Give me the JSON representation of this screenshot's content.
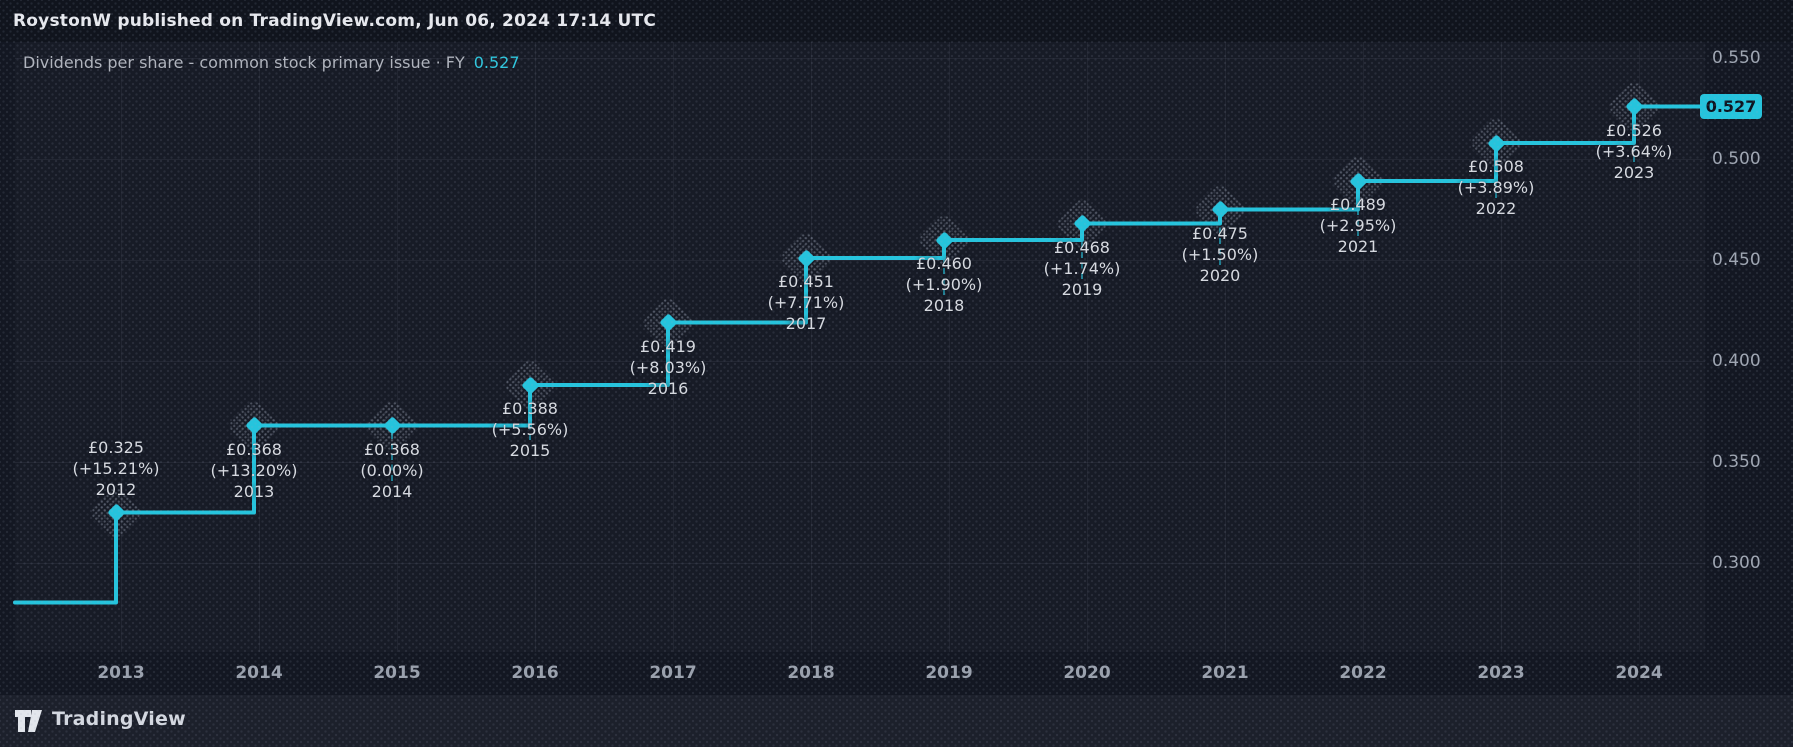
{
  "header": {
    "published_line": "RoystonW published on TradingView.com, Jun 06, 2024 17:14 UTC"
  },
  "legend": {
    "title": "Dividends per share - common stock primary issue · FY",
    "value": "0.527"
  },
  "footer": {
    "brand": "TradingView"
  },
  "colors": {
    "accent": "#25c4dd",
    "background": "#131722",
    "tag_text": "#0d131f",
    "axis_text": "#9fa6b2",
    "note_text": "#d7dae0"
  },
  "chart_data": {
    "type": "line",
    "line_style": "step",
    "title": "Dividends per share - common stock primary issue · FY",
    "currency": "GBP",
    "x": [
      "2012",
      "2013",
      "2014",
      "2015",
      "2016",
      "2017",
      "2018",
      "2019",
      "2020",
      "2021",
      "2022",
      "2023"
    ],
    "values": [
      0.325,
      0.368,
      0.368,
      0.388,
      0.419,
      0.451,
      0.46,
      0.468,
      0.475,
      0.489,
      0.508,
      0.526
    ],
    "point_annotations": [
      {
        "value_label": "£0.325",
        "change_label": "(+15.21%)",
        "year": "2012"
      },
      {
        "value_label": "£0.368",
        "change_label": "(+13.20%)",
        "year": "2013"
      },
      {
        "value_label": "£0.368",
        "change_label": "(0.00%)",
        "year": "2014"
      },
      {
        "value_label": "£0.388",
        "change_label": "(+5.56%)",
        "year": "2015"
      },
      {
        "value_label": "£0.419",
        "change_label": "(+8.03%)",
        "year": "2016"
      },
      {
        "value_label": "£0.451",
        "change_label": "(+7.71%)",
        "year": "2017"
      },
      {
        "value_label": "£0.460",
        "change_label": "(+1.90%)",
        "year": "2018"
      },
      {
        "value_label": "£0.468",
        "change_label": "(+1.74%)",
        "year": "2019"
      },
      {
        "value_label": "£0.475",
        "change_label": "(+1.50%)",
        "year": "2020"
      },
      {
        "value_label": "£0.489",
        "change_label": "(+2.95%)",
        "year": "2021"
      },
      {
        "value_label": "£0.508",
        "change_label": "(+3.89%)",
        "year": "2022"
      },
      {
        "value_label": "£0.526",
        "change_label": "(+3.64%)",
        "year": "2023"
      }
    ],
    "last_price": "0.527",
    "entry_level_from_left": 0.2805,
    "y_ticks": [
      "0.550",
      "0.500",
      "0.450",
      "0.400",
      "0.350",
      "0.300"
    ],
    "x_ticks": [
      "2013",
      "2014",
      "2015",
      "2016",
      "2017",
      "2018",
      "2019",
      "2020",
      "2021",
      "2022",
      "2023",
      "2024"
    ],
    "grid": true,
    "legend_position": "top-left",
    "y_axis_side": "right"
  }
}
